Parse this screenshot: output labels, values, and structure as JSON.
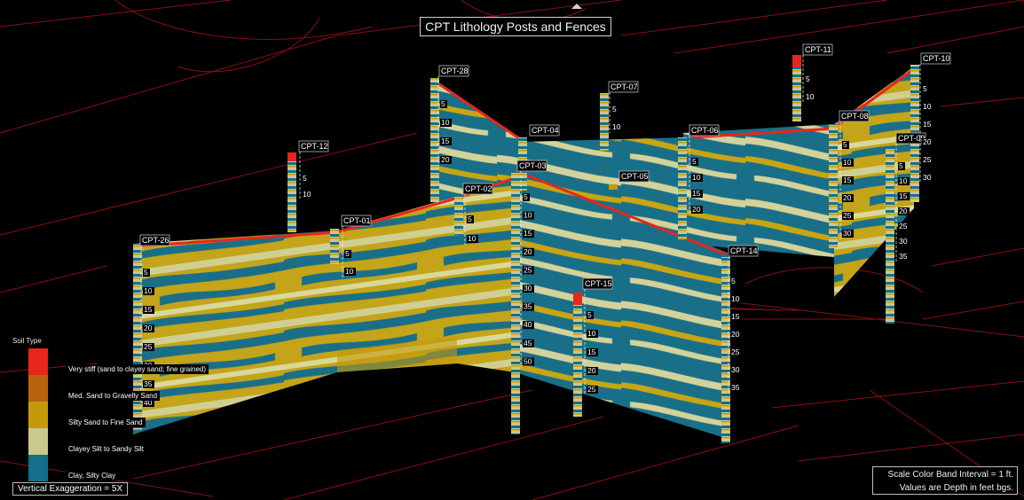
{
  "title": "CPT Lithology Posts and Fences",
  "legend": {
    "title": "Soil Type",
    "items": [
      {
        "label": "Very stiff (sand to clayey sand; fine grained)",
        "color": "#e8261c"
      },
      {
        "label": "Med. Sand to Gravelly Sand",
        "color": "#b8620e"
      },
      {
        "label": "Silty Sand to Fine Sand",
        "color": "#c49a0c"
      },
      {
        "label": "Clayey Silt to Sandy Silt",
        "color": "#c9c98a"
      },
      {
        "label": "Clay, Silty Clay",
        "color": "#146f8c"
      }
    ]
  },
  "vertical_exaggeration": "Vertical Exaggeration = 5X",
  "notes": {
    "line1": "Scale Color Band Interval = 1 ft.",
    "line2": "Values are Depth in feet bgs."
  },
  "wells": [
    {
      "name": "CPT-28",
      "depths": [
        "5",
        "10",
        "15",
        "20"
      ]
    },
    {
      "name": "CPT-07",
      "depths": [
        "5",
        "10"
      ]
    },
    {
      "name": "CPT-11",
      "depths": [
        "5",
        "10"
      ]
    },
    {
      "name": "CPT-10",
      "depths": [
        "5",
        "10",
        "15",
        "20",
        "25",
        "30"
      ]
    },
    {
      "name": "CPT-04",
      "depths": []
    },
    {
      "name": "CPT-06",
      "depths": [
        "5",
        "10",
        "15",
        "20"
      ]
    },
    {
      "name": "CPT-08",
      "depths": [
        "5",
        "10",
        "15",
        "20",
        "25",
        "30"
      ]
    },
    {
      "name": "CPT-09",
      "depths": [
        "5",
        "10",
        "15",
        "20",
        "25",
        "30",
        "35"
      ]
    },
    {
      "name": "CPT-12",
      "depths": [
        "5",
        "10"
      ]
    },
    {
      "name": "CPT-03",
      "depths": [
        "5",
        "10",
        "15",
        "20",
        "25",
        "30",
        "35",
        "40",
        "45",
        "50"
      ]
    },
    {
      "name": "CPT-05",
      "depths": []
    },
    {
      "name": "CPT-02",
      "depths": [
        "5",
        "10"
      ]
    },
    {
      "name": "CPT-01",
      "depths": [
        "5",
        "10"
      ]
    },
    {
      "name": "CPT-26",
      "depths": [
        "5",
        "10",
        "15",
        "20",
        "25",
        "30",
        "35",
        "40"
      ]
    },
    {
      "name": "CPT-14",
      "depths": [
        "5",
        "10",
        "15",
        "20",
        "25",
        "30",
        "35"
      ]
    },
    {
      "name": "CPT-15",
      "depths": [
        "5",
        "10",
        "15",
        "20",
        "25"
      ]
    }
  ],
  "colors": {
    "background": "#000000",
    "basemap_line": "#8b0f12",
    "clay": "#146f8c",
    "silt": "#c9c98a",
    "silty_sand": "#c49a0c",
    "very_stiff": "#e8261c"
  }
}
